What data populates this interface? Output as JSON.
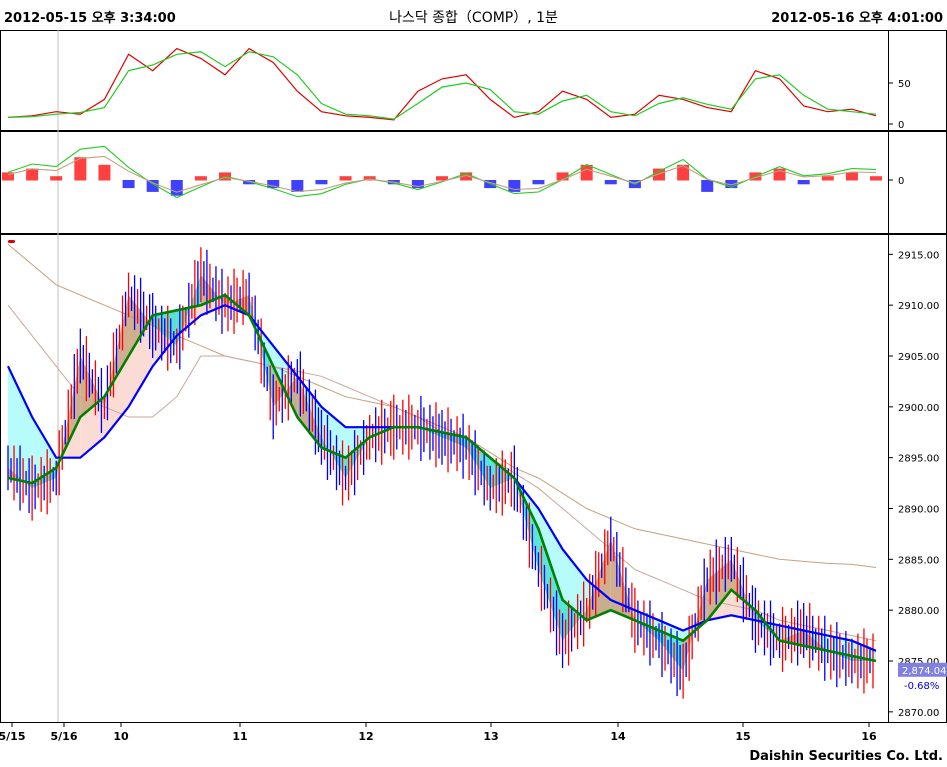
{
  "header": {
    "start_time": "2012-05-15 오후 3:34:00",
    "title": "나스닥 종합（COMP）, 1분",
    "end_time": "2012-05-16 오후 4:01:00"
  },
  "footer": {
    "brand": "Daishin Securities Co. Ltd."
  },
  "colors": {
    "background": "#ffffff",
    "up_candle": "#ff0000",
    "down_candle": "#0000ff",
    "ma_fast": "#008000",
    "ma_slow": "#0000ff",
    "cloud_bear": "#00e0d0",
    "cloud_bull": "#c8a070",
    "osc_red": "#e00000",
    "osc_green": "#22cc22",
    "price_box": "#8080e0"
  },
  "chart_data": [
    {
      "type": "line",
      "panel": "stochastic",
      "yticks": [
        "50",
        "0"
      ],
      "ylim": [
        0,
        100
      ],
      "series": [
        {
          "values": [
            8,
            10,
            15,
            12,
            30,
            85,
            65,
            92,
            80,
            60,
            92,
            75,
            40,
            15,
            10,
            8,
            5,
            40,
            55,
            60,
            30,
            8,
            15,
            40,
            30,
            8,
            12,
            35,
            30,
            20,
            15,
            65,
            55,
            22,
            15,
            18,
            10
          ]
        },
        {
          "values": [
            8,
            9,
            12,
            14,
            20,
            65,
            72,
            85,
            88,
            70,
            88,
            82,
            60,
            25,
            12,
            10,
            6,
            25,
            45,
            50,
            42,
            15,
            12,
            28,
            35,
            15,
            10,
            25,
            32,
            24,
            18,
            55,
            60,
            35,
            18,
            15,
            12
          ]
        }
      ]
    },
    {
      "type": "bar",
      "panel": "macd",
      "yticks": [
        "0"
      ],
      "ylim": [
        -1,
        1
      ],
      "series": [
        {
          "values": [
            0.2,
            0.3,
            0.1,
            0.6,
            0.4,
            -0.2,
            -0.3,
            -0.4,
            0.1,
            0.2,
            -0.1,
            -0.2,
            -0.3,
            -0.1,
            0.1,
            0.1,
            -0.1,
            -0.2,
            0.1,
            0.2,
            -0.2,
            -0.3,
            -0.1,
            0.2,
            0.4,
            -0.1,
            -0.2,
            0.3,
            0.4,
            -0.3,
            -0.2,
            0.2,
            0.3,
            -0.1,
            0.1,
            0.2,
            0.1
          ]
        }
      ]
    },
    {
      "type": "line",
      "panel": "price",
      "x_tick_labels": [
        "5/15",
        "5/16",
        "10",
        "11",
        "12",
        "13",
        "14",
        "15",
        "16"
      ],
      "y_tick_labels": [
        "2915.00",
        "2910.00",
        "2905.00",
        "2900.00",
        "2895.00",
        "2890.00",
        "2885.00",
        "2880.00",
        "2875.00",
        "2870.00"
      ],
      "ylim": [
        2869,
        2917
      ],
      "close": [
        2894,
        2892,
        2893,
        2905,
        2900,
        2911,
        2908,
        2906,
        2913,
        2910,
        2911,
        2900,
        2903,
        2897,
        2893,
        2897,
        2898,
        2898,
        2897,
        2896,
        2892,
        2893,
        2884,
        2877,
        2880,
        2887,
        2879,
        2877,
        2874,
        2883,
        2885,
        2879,
        2877,
        2878,
        2876,
        2875,
        2875
      ],
      "ma_fast": [
        2893,
        2892.5,
        2894,
        2899,
        2901,
        2905,
        2909,
        2909.5,
        2910,
        2911,
        2909,
        2904,
        2899,
        2896,
        2895,
        2897,
        2898,
        2898,
        2897.5,
        2897,
        2895,
        2893,
        2888,
        2881,
        2879,
        2880,
        2879,
        2878,
        2877,
        2879,
        2882,
        2880,
        2877,
        2876.5,
        2876,
        2875.5,
        2875
      ],
      "ma_slow": [
        2904,
        2899,
        2895,
        2895,
        2897,
        2900,
        2904,
        2907,
        2909,
        2910,
        2909,
        2906,
        2903,
        2900,
        2898,
        2898,
        2898,
        2898,
        2897.5,
        2897,
        2895,
        2893,
        2890,
        2886,
        2883,
        2881,
        2880,
        2879,
        2878,
        2879,
        2879.5,
        2879,
        2878.5,
        2878,
        2877.5,
        2877,
        2876
      ],
      "ma_long": [
        2916,
        2914,
        2912,
        2911,
        2910,
        2909,
        2908,
        2907,
        2906,
        2905,
        2904.5,
        2904,
        2903,
        2902,
        2901,
        2900.5,
        2900,
        2899,
        2898,
        2897,
        2895.5,
        2894,
        2893,
        2891.5,
        2890,
        2889,
        2888,
        2887.5,
        2887,
        2886.5,
        2886,
        2885.5,
        2885,
        2884.8,
        2884.6,
        2884.5,
        2884.2
      ],
      "ma_long2": [
        2910,
        2907,
        2904,
        2901,
        2900,
        2899,
        2899,
        2901,
        2905,
        2905,
        2904.5,
        2904,
        2903.5,
        2903,
        2902,
        2901,
        2900,
        2899,
        2897.5,
        2896,
        2895,
        2893.5,
        2892,
        2890,
        2888,
        2886,
        2884,
        2883,
        2882,
        2881,
        2880.5,
        2880,
        2879,
        2878.5,
        2878,
        2877.5,
        2877
      ],
      "last_price_label": "2,874.04",
      "change_label": "-0.68%"
    }
  ]
}
